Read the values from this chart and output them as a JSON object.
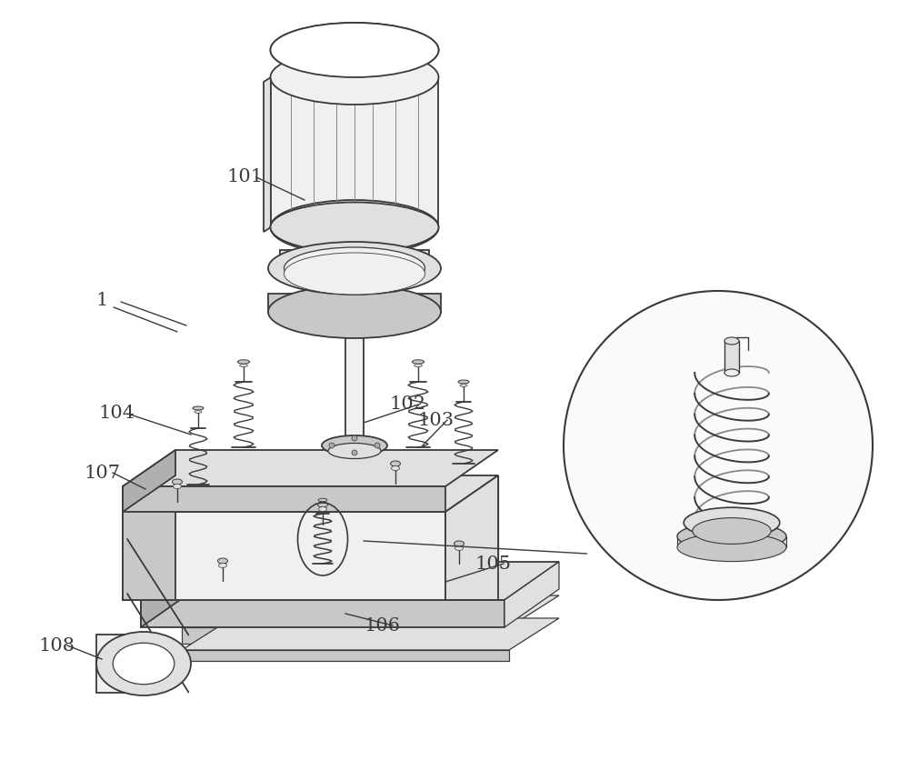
{
  "bg_color": "#ffffff",
  "lc": "#3a3a3a",
  "lc_light": "#888888",
  "fill_white": "#ffffff",
  "fill_light": "#f0f0f0",
  "fill_mid": "#e0e0e0",
  "fill_dark": "#c8c8c8",
  "fill_darker": "#b0b0b0",
  "figsize": [
    10.0,
    8.36
  ],
  "dpi": 100
}
